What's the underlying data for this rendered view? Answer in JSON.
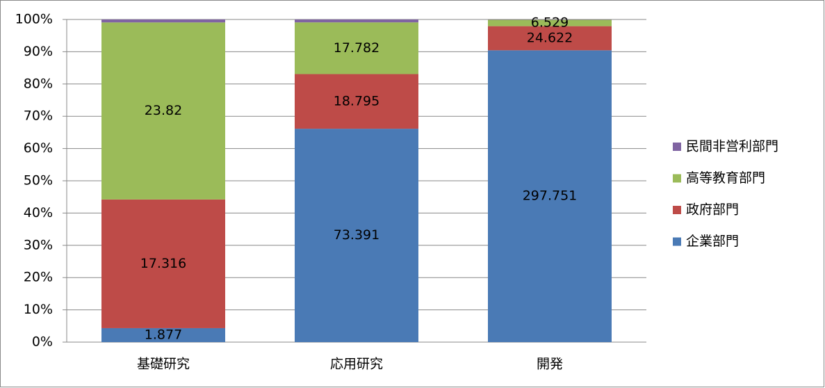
{
  "chart_data": {
    "type": "stacked_percent_bar",
    "categories": [
      "基礎研究",
      "応用研究",
      "開発"
    ],
    "series": [
      {
        "name": "企業部門",
        "color": "#4a7ab5",
        "values": [
          1.877,
          73.391,
          297.751
        ],
        "show_labels": true
      },
      {
        "name": "政府部門",
        "color": "#be4b48",
        "values": [
          17.316,
          18.795,
          24.622
        ],
        "show_labels": true
      },
      {
        "name": "高等教育部門",
        "color": "#9bbb59",
        "values": [
          23.82,
          17.782,
          6.529
        ],
        "show_labels": true
      },
      {
        "name": "民間非営利部門",
        "color": "#8064a2",
        "values": [
          0.4,
          1.0,
          0.3
        ],
        "show_labels": false
      }
    ],
    "ylim": [
      0,
      100
    ],
    "yticks": [
      {
        "value": 0,
        "label": "0%"
      },
      {
        "value": 10,
        "label": "10%"
      },
      {
        "value": 20,
        "label": "20%"
      },
      {
        "value": 30,
        "label": "30%"
      },
      {
        "value": 40,
        "label": "40%"
      },
      {
        "value": 50,
        "label": "50%"
      },
      {
        "value": 60,
        "label": "60%"
      },
      {
        "value": 70,
        "label": "70%"
      },
      {
        "value": 80,
        "label": "80%"
      },
      {
        "value": 90,
        "label": "90%"
      },
      {
        "value": 100,
        "label": "100%"
      }
    ],
    "grid": true,
    "legend": "right"
  }
}
